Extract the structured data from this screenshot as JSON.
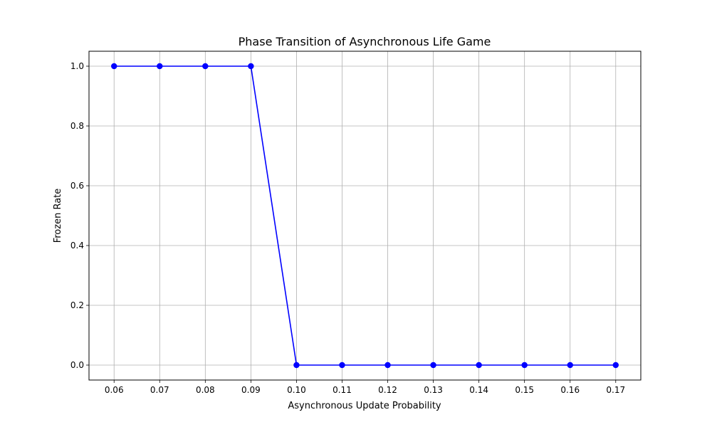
{
  "chart_data": {
    "type": "line",
    "title": "Phase Transition of Asynchronous Life Game",
    "xlabel": "Asynchronous Update Probability",
    "ylabel": "Frozen Rate",
    "x": [
      0.06,
      0.07,
      0.08,
      0.09,
      0.1,
      0.11,
      0.12,
      0.13,
      0.14,
      0.15,
      0.16,
      0.17
    ],
    "x_tick_labels": [
      "0.06",
      "0.07",
      "0.08",
      "0.09",
      "0.10",
      "0.11",
      "0.12",
      "0.13",
      "0.14",
      "0.15",
      "0.16",
      "0.17"
    ],
    "y_ticks": [
      0.0,
      0.2,
      0.4,
      0.6,
      0.8,
      1.0
    ],
    "y_tick_labels": [
      "0.0",
      "0.2",
      "0.4",
      "0.6",
      "0.8",
      "1.0"
    ],
    "series": [
      {
        "values": [
          1.0,
          1.0,
          1.0,
          1.0,
          0.0,
          0.0,
          0.0,
          0.0,
          0.0,
          0.0,
          0.0,
          0.0
        ],
        "color": "#0000ff",
        "marker": "circle"
      }
    ],
    "xlim": [
      0.0545,
      0.1755
    ],
    "ylim": [
      -0.05,
      1.05
    ],
    "grid": true,
    "grid_color": "#b0b0b0"
  }
}
